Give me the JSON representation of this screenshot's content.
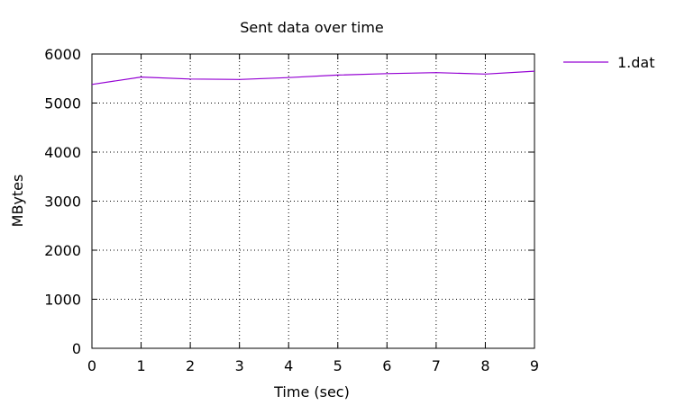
{
  "chart_data": {
    "type": "line",
    "title": "Sent data over time",
    "xlabel": "Time (sec)",
    "ylabel": "MBytes",
    "xlim": [
      0,
      9
    ],
    "ylim": [
      0,
      6000
    ],
    "xticks": [
      0,
      1,
      2,
      3,
      4,
      5,
      6,
      7,
      8,
      9
    ],
    "yticks": [
      0,
      1000,
      2000,
      3000,
      4000,
      5000,
      6000
    ],
    "grid": true,
    "legend_position": "top-right-outside",
    "series": [
      {
        "name": "1.dat",
        "color": "#9400d3",
        "x": [
          0,
          1,
          2,
          3,
          4,
          5,
          6,
          7,
          8,
          9
        ],
        "y": [
          5380,
          5530,
          5490,
          5480,
          5520,
          5570,
          5600,
          5620,
          5590,
          5650
        ]
      }
    ]
  }
}
